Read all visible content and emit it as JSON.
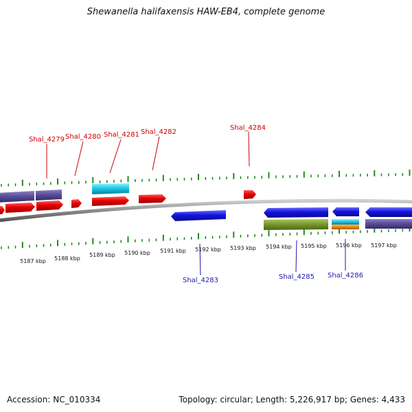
{
  "title": "Shewanella halifaxensis HAW-EB4, complete genome",
  "footer": {
    "accession": "Accession: NC_010334",
    "stats": "Topology: circular; Length: 5,226,917 bp; Genes: 4,433"
  },
  "colors": {
    "backbone": "#8a8a8a",
    "tick": "#1f8a1f",
    "plus_label": "#cc0000",
    "minus_label": "#1a1aa8",
    "red_gene": "#e80000",
    "cyan_gene": "#1cc8e8",
    "purple_gene": "#5a4f9a",
    "blue_gene": "#1414e0",
    "olive_gene": "#7a9a2e",
    "orange_gene": "#f0900c"
  },
  "scale": {
    "unit": "kbp",
    "labels": [
      "5187 kbp",
      "5188 kbp",
      "5189 kbp",
      "5190 kbp",
      "5191 kbp",
      "5192 kbp",
      "5193 kbp",
      "5194 kbp",
      "5195 kbp",
      "5196 kbp",
      "5197 kbp"
    ]
  },
  "gene_labels": {
    "plus": [
      "Shal_4279",
      "Shal_4280",
      "Shal_4281",
      "Shal_4282",
      "Shal_4284"
    ],
    "minus": [
      "Shal_4283",
      "Shal_4285",
      "Shal_4286"
    ]
  }
}
